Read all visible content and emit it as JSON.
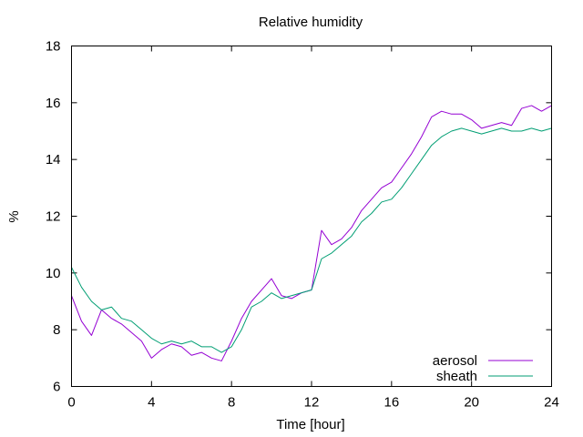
{
  "chart_data": {
    "type": "line",
    "title": "Relative humidity",
    "xlabel": "Time [hour]",
    "ylabel": "%",
    "xlim": [
      0,
      24
    ],
    "ylim": [
      6,
      18
    ],
    "xticks": [
      0,
      4,
      8,
      12,
      16,
      20,
      24
    ],
    "yticks": [
      6,
      8,
      10,
      12,
      14,
      16,
      18
    ],
    "grid": false,
    "legend_position": "bottom-right",
    "series": [
      {
        "name": "aerosol",
        "color": "#9400d3",
        "x": [
          0,
          0.5,
          1,
          1.5,
          2,
          2.5,
          3,
          3.5,
          4,
          4.5,
          5,
          5.5,
          6,
          6.5,
          7,
          7.5,
          8,
          8.5,
          9,
          9.5,
          10,
          10.5,
          11,
          11.5,
          12,
          12.5,
          13,
          13.5,
          14,
          14.5,
          15,
          15.5,
          16,
          16.5,
          17,
          17.5,
          18,
          18.5,
          19,
          19.5,
          20,
          20.5,
          21,
          21.5,
          22,
          22.5,
          23,
          23.5,
          24
        ],
        "y": [
          9.2,
          8.3,
          7.8,
          8.7,
          8.4,
          8.2,
          7.9,
          7.6,
          7.0,
          7.3,
          7.5,
          7.4,
          7.1,
          7.2,
          7.0,
          6.9,
          7.6,
          8.4,
          9.0,
          9.4,
          9.8,
          9.2,
          9.1,
          9.3,
          9.4,
          11.5,
          11.0,
          11.2,
          11.6,
          12.2,
          12.6,
          13.0,
          13.2,
          13.7,
          14.2,
          14.8,
          15.5,
          15.7,
          15.6,
          15.6,
          15.4,
          15.1,
          15.2,
          15.3,
          15.2,
          15.8,
          15.9,
          15.7,
          15.9
        ]
      },
      {
        "name": "sheath",
        "color": "#009e73",
        "x": [
          0,
          0.5,
          1,
          1.5,
          2,
          2.5,
          3,
          3.5,
          4,
          4.5,
          5,
          5.5,
          6,
          6.5,
          7,
          7.5,
          8,
          8.5,
          9,
          9.5,
          10,
          10.5,
          11,
          11.5,
          12,
          12.5,
          13,
          13.5,
          14,
          14.5,
          15,
          15.5,
          16,
          16.5,
          17,
          17.5,
          18,
          18.5,
          19,
          19.5,
          20,
          20.5,
          21,
          21.5,
          22,
          22.5,
          23,
          23.5,
          24
        ],
        "y": [
          10.2,
          9.5,
          9.0,
          8.7,
          8.8,
          8.4,
          8.3,
          8.0,
          7.7,
          7.5,
          7.6,
          7.5,
          7.6,
          7.4,
          7.4,
          7.2,
          7.4,
          8.0,
          8.8,
          9.0,
          9.3,
          9.1,
          9.2,
          9.3,
          9.4,
          10.5,
          10.7,
          11.0,
          11.3,
          11.8,
          12.1,
          12.5,
          12.6,
          13.0,
          13.5,
          14.0,
          14.5,
          14.8,
          15.0,
          15.1,
          15.0,
          14.9,
          15.0,
          15.1,
          15.0,
          15.0,
          15.1,
          15.0,
          15.1
        ]
      }
    ]
  }
}
